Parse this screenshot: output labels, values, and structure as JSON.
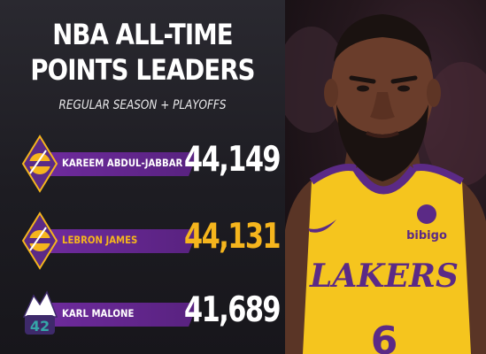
{
  "header": {
    "title_line1": "NBA ALL-TIME",
    "title_line2": "POINTS LEADERS",
    "subtitle": "REGULAR SEASON + PLAYOFFS"
  },
  "colors": {
    "lakers_purple": "#58227f",
    "lakers_gold": "#f5b51d",
    "jazz_purple": "#3e2a6b",
    "jazz_teal": "#35a6a8"
  },
  "icons": [
    "lakers-logo-icon",
    "lakers-logo-icon",
    "jazz-logo-icon"
  ],
  "photo": {
    "jersey_wordmark": "LAKERS",
    "sponsor_text": "bibigo",
    "jersey_number": "6"
  },
  "chart_data": {
    "type": "table",
    "title": "NBA ALL-TIME POINTS LEADERS",
    "subtitle": "REGULAR SEASON + PLAYOFFS",
    "categories": [
      "KAREEM ABDUL-JABBAR",
      "LEBRON JAMES",
      "KARL MALONE"
    ],
    "values": [
      44149,
      44131,
      41689
    ],
    "value_labels": [
      "44,149",
      "44,131",
      "41,689"
    ],
    "highlighted": "LEBRON JAMES"
  }
}
